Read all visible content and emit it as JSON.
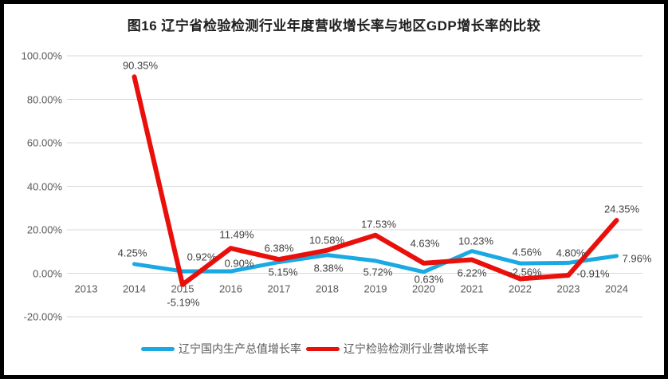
{
  "chart_data": {
    "type": "line",
    "title": "图16 辽宁省检验检测行业年度营收增长率与地区GDP增长率的比较",
    "categories": [
      "2013",
      "2014",
      "2015",
      "2016",
      "2017",
      "2018",
      "2019",
      "2020",
      "2021",
      "2022",
      "2023",
      "2024"
    ],
    "series": [
      {
        "name": "辽宁国内生产总值增长率",
        "color": "#1AA9E2",
        "values": [
          null,
          4.25,
          0.92,
          0.9,
          5.15,
          8.38,
          5.72,
          0.63,
          10.23,
          4.56,
          4.8,
          7.96
        ],
        "data_labels": [
          "",
          "4.25%",
          "0.92%",
          "0.90%",
          "5.15%",
          "8.38%",
          "5.72%",
          "0.63%",
          "10.23%",
          "4.56%",
          "4.80%",
          "7.96%"
        ]
      },
      {
        "name": "辽宁检验检测行业营收增长率",
        "color": "#E9100C",
        "values": [
          null,
          90.35,
          -5.19,
          11.49,
          6.38,
          10.58,
          17.53,
          4.63,
          6.22,
          -2.56,
          -0.91,
          24.35
        ],
        "data_labels": [
          "",
          "90.35%",
          "-5.19%",
          "11.49%",
          "6.38%",
          "10.58%",
          "17.53%",
          "4.63%",
          "6.22%",
          "-2.56%",
          "-0.91%",
          "24.35%"
        ]
      }
    ],
    "y_axis": {
      "tick_labels": [
        "100.00%",
        "80.00%",
        "60.00%",
        "40.00%",
        "20.00%",
        "0.00%",
        "-20.00%"
      ],
      "tick_values": [
        100,
        80,
        60,
        40,
        20,
        0,
        -20
      ]
    },
    "xlabel": "",
    "ylabel": "",
    "ylim": [
      -20,
      100
    ],
    "grid": true,
    "legend_position": "bottom"
  },
  "colors": {
    "grid": "#D8D8D8",
    "axis_text": "#595959",
    "data_label_text": "#404040",
    "title_text": "#1F1F1F",
    "frame": "#000000",
    "background": "#FFFFFF"
  }
}
